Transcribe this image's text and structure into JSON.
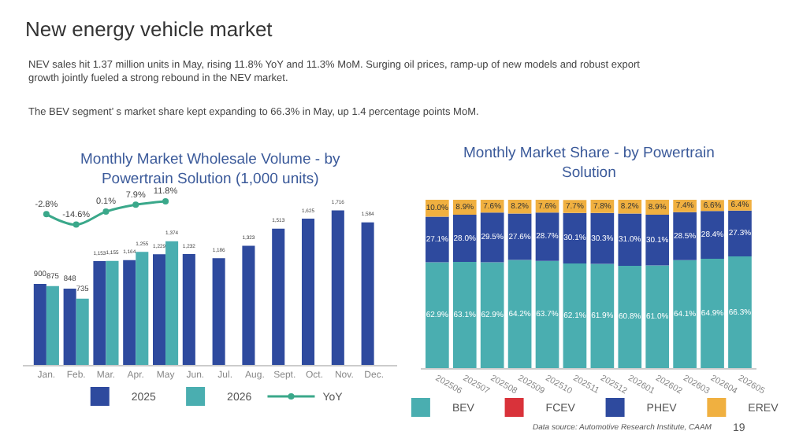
{
  "chart_data": [
    {
      "type": "other",
      "title": "New energy vehicle market",
      "annotations": [
        "NEV sales hit 1.37 million units in May, rising 11.8% YoY and 11.3% MoM. Surging oil prices, ramp-up of new models and robust export growth jointly fueled a strong rebound in the NEV market.",
        "The BEV segment’ s market share kept expanding to 66.3% in May, up 1.4 percentage points MoM.",
        "Data source: Automotive Research Institute, CAAM",
        "19"
      ]
    },
    {
      "type": "bar",
      "title": "Monthly Market Wholesale Volume - by Powertrain Solution (1,000 units)",
      "categories": [
        "Jan.",
        "Feb.",
        "Mar.",
        "Apr.",
        "May",
        "Jun.",
        "Jul.",
        "Aug.",
        "Sept.",
        "Oct.",
        "Nov.",
        "Dec."
      ],
      "legend": "bottom",
      "grid": false,
      "data_labels": true,
      "series": [
        {
          "name": "2025",
          "color": "#2e4a9e",
          "values": [
            900,
            848,
            1153,
            1164,
            1229,
            1232,
            1186,
            1323,
            1513,
            1625,
            1716,
            1584
          ],
          "value_labels": [
            "900",
            "848",
            "1,153",
            "1,164",
            "1,229",
            "1,232",
            "1,186",
            "1,323",
            "1,513",
            "1,625",
            "1,716",
            "1,584"
          ]
        },
        {
          "name": "2026",
          "color": "#4aaeb0",
          "values": [
            875,
            735,
            1155,
            1255,
            1374,
            null,
            null,
            null,
            null,
            null,
            null,
            null
          ],
          "value_labels": [
            "875",
            "735",
            "1,155",
            "1,255",
            "1,374",
            null,
            null,
            null,
            null,
            null,
            null,
            null
          ]
        },
        {
          "name": "YoY",
          "type": "line",
          "axis": "y2",
          "marker": "circle",
          "color": "#3aa88a",
          "values": [
            -2.8,
            -14.6,
            0.1,
            7.9,
            11.8,
            null,
            null,
            null,
            null,
            null,
            null,
            null
          ],
          "value_labels": [
            "-2.8%",
            "-14.6%",
            "0.1%",
            "7.9%",
            "11.8%",
            null,
            null,
            null,
            null,
            null,
            null,
            null
          ]
        }
      ]
    },
    {
      "type": "bar",
      "stacked": true,
      "title": "Monthly Market Share - by Powertrain Solution",
      "categories": [
        "202506",
        "202507",
        "202508",
        "202509",
        "202510",
        "202511",
        "202512",
        "202601",
        "202602",
        "202603",
        "202604",
        "202605"
      ],
      "legend": "bottom",
      "grid": false,
      "series": [
        {
          "name": "BEV",
          "color": "#4aaeb0",
          "values": [
            62.9,
            63.1,
            62.9,
            64.2,
            63.7,
            62.1,
            61.9,
            60.8,
            61.0,
            64.1,
            64.9,
            66.3
          ],
          "value_labels": [
            "62.9%",
            "63.1%",
            "62.9%",
            "64.2%",
            "63.7%",
            "62.1%",
            "61.9%",
            "60.8%",
            "61.0%",
            "64.1%",
            "64.9%",
            "66.3%"
          ]
        },
        {
          "name": "FCEV",
          "color": "#d9323a",
          "values": [
            0,
            0,
            0,
            0,
            0,
            0,
            0,
            0,
            0,
            0,
            0,
            0
          ]
        },
        {
          "name": "PHEV",
          "color": "#2e4a9e",
          "values": [
            27.1,
            28.0,
            29.5,
            27.6,
            28.7,
            30.1,
            30.3,
            31.0,
            30.1,
            28.5,
            28.4,
            27.3
          ],
          "value_labels": [
            "27.1%",
            "28.0%",
            "29.5%",
            "27.6%",
            "28.7%",
            "30.1%",
            "30.3%",
            "31.0%",
            "30.1%",
            "28.5%",
            "28.4%",
            "27.3%"
          ]
        },
        {
          "name": "EREV",
          "color": "#f0b040",
          "values": [
            10.0,
            8.9,
            7.6,
            8.2,
            7.6,
            7.7,
            7.8,
            8.2,
            8.9,
            7.4,
            6.6,
            6.4
          ],
          "value_labels": [
            "10.0%",
            "8.9%",
            "7.6%",
            "8.2%",
            "7.6%",
            "7.7%",
            "7.8%",
            "8.2%",
            "8.9%",
            "7.4%",
            "6.6%",
            "6.4%"
          ]
        }
      ]
    }
  ]
}
